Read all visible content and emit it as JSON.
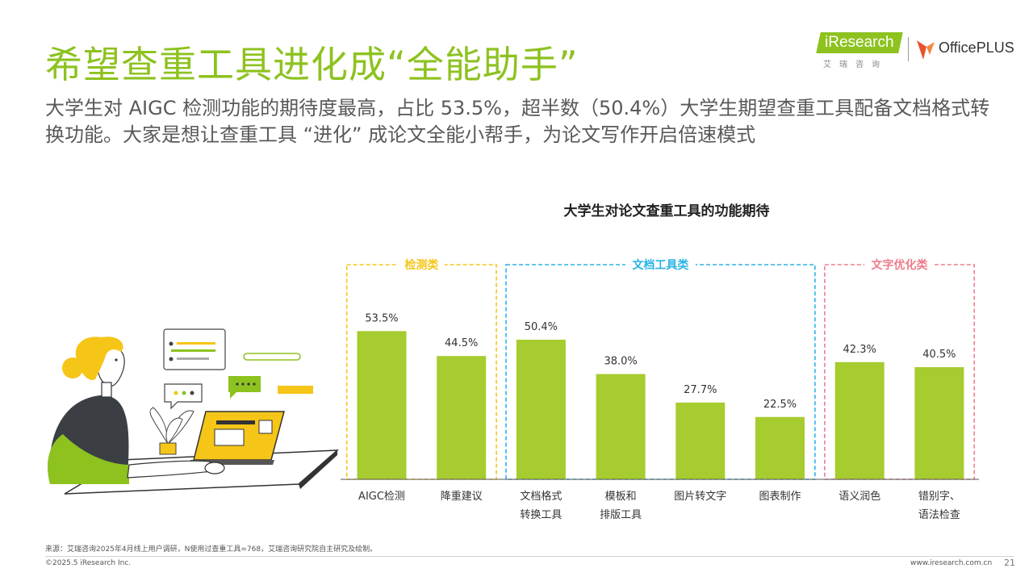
{
  "title": "希望查重工具进化成“全能助手”",
  "subtitle": "大学生对 AIGC 检测功能的期待度最高，占比 53.5%，超半数（50.4%）大学生期望查重工具配备文档格式转换功能。大家是想让查重工具 “进化” 成论文全能小帮手，为论文写作开启倍速模式",
  "logos": {
    "iresearch": "iResearch",
    "iresearch_cn": "艾瑞咨询",
    "officeplus": "OfficePLUS"
  },
  "chart_data": {
    "type": "bar",
    "title": "大学生对论文查重工具的功能期待",
    "ylim": [
      0,
      60
    ],
    "value_suffix": "%",
    "bar_color": "#a6cc2f",
    "groups": [
      {
        "name": "检测类",
        "color": "#f5c518",
        "indices": [
          0,
          1
        ]
      },
      {
        "name": "文档工具类",
        "color": "#2bb4e6",
        "indices": [
          2,
          3,
          4,
          5
        ]
      },
      {
        "name": "文字优化类",
        "color": "#ee7d8c",
        "indices": [
          6,
          7
        ]
      }
    ],
    "categories": [
      [
        "AIGC检测"
      ],
      [
        "降重建议"
      ],
      [
        "文档格式",
        "转换工具"
      ],
      [
        "模板和",
        "排版工具"
      ],
      [
        "图片转文字"
      ],
      [
        "图表制作"
      ],
      [
        "语义润色"
      ],
      [
        "错别字、",
        "语法检查"
      ]
    ],
    "values": [
      53.5,
      44.5,
      50.4,
      38.0,
      27.7,
      22.5,
      42.3,
      40.5
    ],
    "value_labels": [
      "53.5%",
      "44.5%",
      "50.4%",
      "38.0%",
      "27.7%",
      "22.5%",
      "42.3%",
      "40.5%"
    ]
  },
  "footer": {
    "source": "来源：艾瑞咨询2025年4月线上用户调研，N使用过查重工具=768，艾瑞咨询研究院自主研究及绘制。",
    "copyright": "©2025.5 iResearch Inc.",
    "website": "www.iresearch.com.cn",
    "page": "21"
  }
}
